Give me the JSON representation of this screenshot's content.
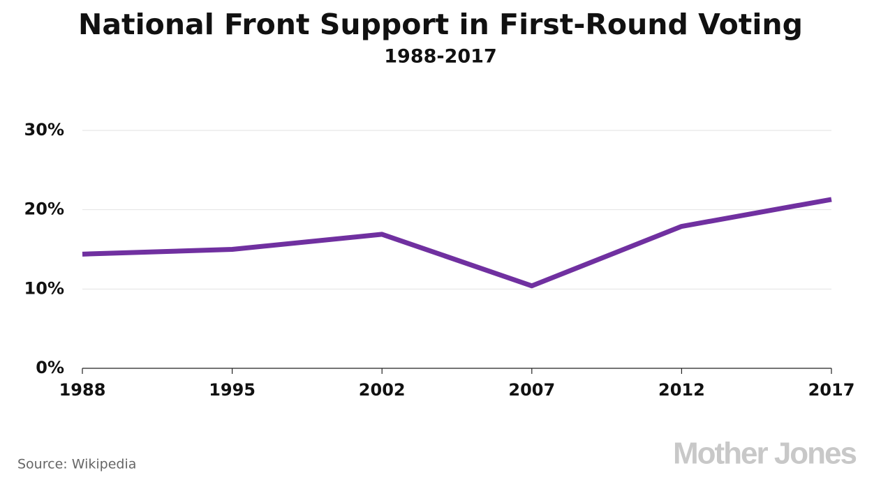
{
  "chart_data": {
    "type": "line",
    "title": "National Front Support in First-Round Voting",
    "subtitle": "1988-2017",
    "categories": [
      "1988",
      "1995",
      "2002",
      "2007",
      "2012",
      "2017"
    ],
    "values": [
      14.4,
      15.0,
      16.9,
      10.4,
      17.9,
      21.3
    ],
    "color": "#7030a0",
    "ylim": [
      0,
      30
    ],
    "yticks": [
      {
        "value": 0,
        "label": "0%"
      },
      {
        "value": 10,
        "label": "10%"
      },
      {
        "value": 20,
        "label": "20%"
      },
      {
        "value": 30,
        "label": "30%"
      }
    ],
    "grid": true,
    "source": "Source: Wikipedia",
    "credit": "Mother Jones"
  }
}
